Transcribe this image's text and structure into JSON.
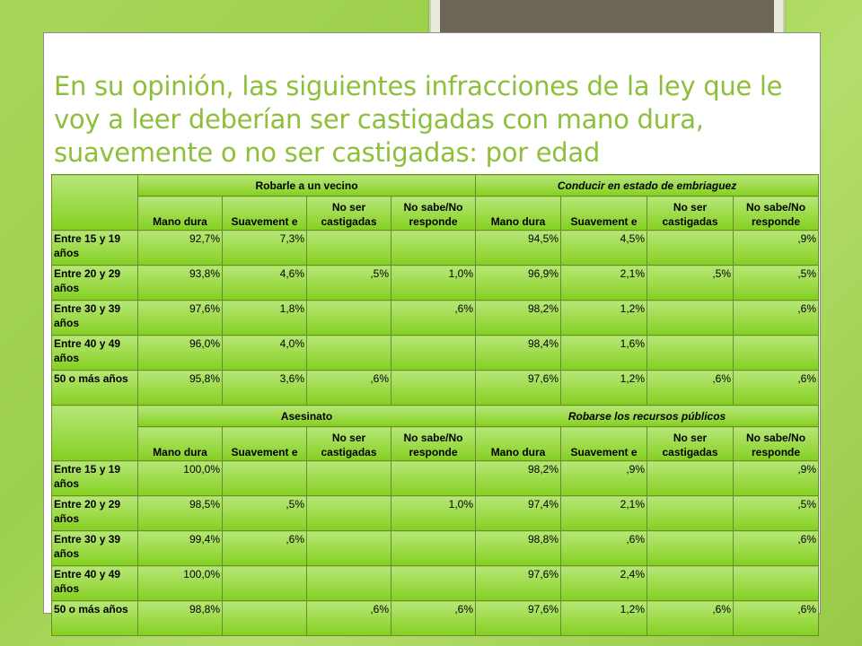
{
  "title": "En su opinión, las siguientes infracciones de la ley que le voy a leer deberían ser castigadas con mano dura, suavemente o no ser castigadas: por edad",
  "sections": [
    {
      "groups": [
        "Robarle a un vecino",
        "Conducir en estado de embriaguez"
      ],
      "columns": [
        "Mano dura",
        "Suavement e",
        "No ser castigadas",
        "No sabe/No responde",
        "Mano dura",
        "Suavement e",
        "No ser castigadas",
        "No sabe/No responde"
      ],
      "rows": [
        {
          "label": "Entre 15 y 19 años",
          "values": [
            "92,7%",
            "7,3%",
            "",
            "",
            "94,5%",
            "4,5%",
            "",
            ",9%"
          ]
        },
        {
          "label": "Entre 20 y 29 años",
          "values": [
            "93,8%",
            "4,6%",
            ",5%",
            "1,0%",
            "96,9%",
            "2,1%",
            ",5%",
            ",5%"
          ]
        },
        {
          "label": "Entre 30 y 39 años",
          "values": [
            "97,6%",
            "1,8%",
            "",
            ",6%",
            "98,2%",
            "1,2%",
            "",
            ",6%"
          ]
        },
        {
          "label": "Entre 40 y 49 años",
          "values": [
            "96,0%",
            "4,0%",
            "",
            "",
            "98,4%",
            "1,6%",
            "",
            ""
          ]
        },
        {
          "label": "50 o más años",
          "values": [
            "95,8%",
            "3,6%",
            ",6%",
            "",
            "97,6%",
            "1,2%",
            ",6%",
            ",6%"
          ]
        }
      ]
    },
    {
      "groups": [
        "Asesinato",
        "Robarse los recursos públicos"
      ],
      "columns": [
        "Mano dura",
        "Suavement e",
        "No ser castigadas",
        "No sabe/No responde",
        "Mano dura",
        "Suavement e",
        "No ser castigadas",
        "No sabe/No responde"
      ],
      "rows": [
        {
          "label": "Entre 15 y 19 años",
          "values": [
            "100,0%",
            "",
            "",
            "",
            "98,2%",
            ",9%",
            "",
            ",9%"
          ]
        },
        {
          "label": "Entre 20 y 29 años",
          "values": [
            "98,5%",
            ",5%",
            "",
            "1,0%",
            "97,4%",
            "2,1%",
            "",
            ",5%"
          ]
        },
        {
          "label": "Entre 30 y 39 años",
          "values": [
            "99,4%",
            ",6%",
            "",
            "",
            "98,8%",
            ",6%",
            "",
            ",6%"
          ]
        },
        {
          "label": "Entre 40 y 49 años",
          "values": [
            "100,0%",
            "",
            "",
            "",
            "97,6%",
            "2,4%",
            "",
            ""
          ]
        },
        {
          "label": "50 o más años",
          "values": [
            "98,8%",
            "",
            ",6%",
            ",6%",
            "97,6%",
            "1,2%",
            ",6%",
            ",6%"
          ]
        }
      ]
    }
  ]
}
